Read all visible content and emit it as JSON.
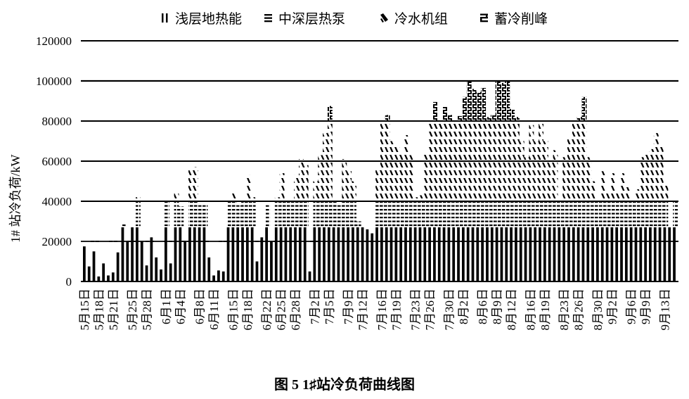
{
  "chart_data": {
    "type": "bar",
    "stacked": true,
    "title": "",
    "caption": "图 5   1♯站冷负荷曲线图",
    "xlabel": "",
    "ylabel": "1# 站冷负荷/kW",
    "ylim": [
      0,
      120000
    ],
    "yticks": [
      0,
      20000,
      40000,
      60000,
      80000,
      100000,
      120000
    ],
    "ytick_labels": [
      "0",
      "20000",
      "40000",
      "60000",
      "80000",
      "100000",
      "120000"
    ],
    "grid": true,
    "legend_position": "top",
    "legend": [
      "浅层地热能",
      "中深层热泵",
      "冷水机组",
      "蓄冷削峰"
    ],
    "reference_line": {
      "value": 20000,
      "style": "dashed"
    },
    "xtick_labels": [
      "5月15日",
      "5月18日",
      "5月21日",
      "5月25日",
      "5月28日",
      "6月1日",
      "6月4日",
      "6月8日",
      "6月11日",
      "6月15日",
      "6月18日",
      "6月22日",
      "6月25日",
      "6月28日",
      "7月2日",
      "7月5日",
      "7月9日",
      "7月12日",
      "7月16日",
      "7月19日",
      "7月23日",
      "7月26日",
      "7月30日",
      "8月2日",
      "8月6日",
      "8月9日",
      "8月12日",
      "8月16日",
      "8月19日",
      "8月23日",
      "8月26日",
      "8月30日",
      "9月2日",
      "9月6日",
      "9月9日",
      "9月13日"
    ],
    "start_date": "5月15日",
    "total_load": [
      17500,
      7500,
      15000,
      2500,
      9000,
      3000,
      4500,
      14500,
      28500,
      20000,
      27000,
      42000,
      20000,
      8000,
      22000,
      12000,
      6000,
      40000,
      9000,
      45000,
      37500,
      20000,
      56000,
      57000,
      38000,
      38000,
      12000,
      3000,
      5500,
      5000,
      40000,
      44500,
      38000,
      40500,
      53000,
      42000,
      10000,
      22000,
      38000,
      20000,
      42000,
      54000,
      40000,
      41000,
      53000,
      61000,
      58000,
      5000,
      50000,
      63000,
      74000,
      87500,
      40000,
      38000,
      61000,
      55000,
      50000,
      30000,
      27000,
      26000,
      24000,
      56000,
      80000,
      83000,
      70000,
      68000,
      64500,
      73000,
      63000,
      42000,
      43000,
      64000,
      80000,
      89500,
      80000,
      87000,
      83000,
      80000,
      82500,
      92000,
      100000,
      96000,
      94500,
      96500,
      82000,
      83000,
      100000,
      99000,
      100000,
      86000,
      82000,
      70000,
      62000,
      78000,
      70000,
      80000,
      70000,
      60000,
      65500,
      40000,
      62000,
      72000,
      80000,
      82000,
      92000,
      62000,
      50000,
      40000,
      55000,
      45000,
      54000,
      45000,
      54000,
      47000,
      40000,
      46000,
      62000,
      64000,
      66000,
      74000,
      68000,
      48000,
      27000,
      40000
    ],
    "series": [
      {
        "name": "浅层地热能",
        "max": 27000
      },
      {
        "name": "中深层热泵",
        "range": [
          27000,
          40000
        ]
      },
      {
        "name": "冷水机组",
        "range": [
          40000,
          80000
        ]
      },
      {
        "name": "蓄冷削峰",
        "range": [
          80000,
          102000
        ]
      }
    ]
  },
  "legend": {
    "items": [
      {
        "label": "浅层地热能",
        "pattern": "vertical"
      },
      {
        "label": "中深层热泵",
        "pattern": "horizontal"
      },
      {
        "label": "冷水机组",
        "pattern": "diagonal"
      },
      {
        "label": "蓄冷削峰",
        "pattern": "brick"
      }
    ]
  },
  "axis": {
    "ylabel": "1# 站冷负荷/kW"
  },
  "caption": "图 5   1♯站冷负荷曲线图"
}
